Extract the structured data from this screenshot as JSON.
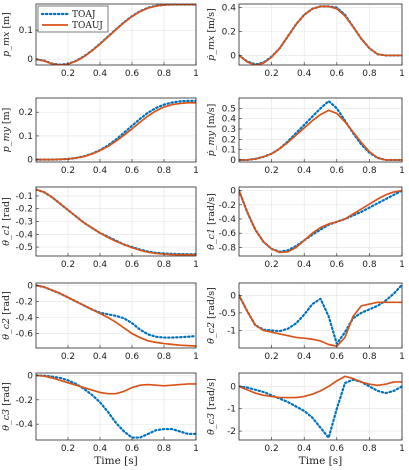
{
  "legend": {
    "entries": [
      {
        "label": "TOAJ",
        "color": "#0072BD",
        "dash": "dotted"
      },
      {
        "label": "TOAUJ",
        "color": "#D95319",
        "dash": "solid"
      }
    ]
  },
  "x_axis_label": "Time [s]",
  "chart_data": [
    {
      "type": "line",
      "ylabel": "p_mx [m]",
      "xlim": [
        0,
        1
      ],
      "ylim": [
        -0.02,
        0.19
      ],
      "yticks": [
        0,
        0.1
      ],
      "xticks": [
        0.2,
        0.4,
        0.6,
        0.8,
        1
      ],
      "grid": true,
      "x": [
        0,
        0.05,
        0.1,
        0.15,
        0.2,
        0.25,
        0.3,
        0.35,
        0.4,
        0.45,
        0.5,
        0.55,
        0.6,
        0.65,
        0.7,
        0.75,
        0.8,
        0.85,
        0.9,
        0.95,
        1
      ],
      "series": [
        {
          "name": "TOAJ",
          "values": [
            0,
            -0.005,
            -0.015,
            -0.019,
            -0.016,
            -0.006,
            0.01,
            0.03,
            0.053,
            0.078,
            0.103,
            0.127,
            0.148,
            0.165,
            0.177,
            0.184,
            0.187,
            0.188,
            0.188,
            0.188,
            0.188
          ]
        },
        {
          "name": "TOAUJ",
          "values": [
            0,
            -0.006,
            -0.016,
            -0.02,
            -0.017,
            -0.007,
            0.009,
            0.029,
            0.052,
            0.077,
            0.102,
            0.126,
            0.147,
            0.164,
            0.176,
            0.183,
            0.187,
            0.188,
            0.188,
            0.188,
            0.188
          ]
        }
      ]
    },
    {
      "type": "line",
      "ylabel": "ṗ_mx [m/s]",
      "xlim": [
        0,
        1
      ],
      "ylim": [
        -0.08,
        0.43
      ],
      "yticks": [
        0,
        0.2,
        0.4
      ],
      "xticks": [
        0.2,
        0.4,
        0.6,
        0.8,
        1
      ],
      "grid": true,
      "x": [
        0,
        0.05,
        0.1,
        0.15,
        0.2,
        0.25,
        0.3,
        0.35,
        0.4,
        0.45,
        0.5,
        0.55,
        0.6,
        0.65,
        0.7,
        0.75,
        0.8,
        0.85,
        0.9,
        0.95,
        1
      ],
      "series": [
        {
          "name": "TOAJ",
          "values": [
            0,
            -0.05,
            -0.075,
            -0.06,
            -0.01,
            0.06,
            0.16,
            0.26,
            0.34,
            0.39,
            0.41,
            0.41,
            0.4,
            0.34,
            0.24,
            0.14,
            0.06,
            0.01,
            0,
            0,
            0
          ]
        },
        {
          "name": "TOAUJ",
          "values": [
            0,
            -0.055,
            -0.08,
            -0.065,
            -0.015,
            0.06,
            0.16,
            0.26,
            0.34,
            0.39,
            0.41,
            0.41,
            0.39,
            0.33,
            0.24,
            0.14,
            0.06,
            0.01,
            0,
            0,
            0
          ]
        }
      ]
    },
    {
      "type": "line",
      "ylabel": "p_my [m]",
      "xlim": [
        0,
        1
      ],
      "ylim": [
        -0.01,
        0.26
      ],
      "yticks": [
        0,
        0.1,
        0.2
      ],
      "xticks": [
        0.2,
        0.4,
        0.6,
        0.8,
        1
      ],
      "grid": true,
      "x": [
        0,
        0.05,
        0.1,
        0.15,
        0.2,
        0.25,
        0.3,
        0.35,
        0.4,
        0.45,
        0.5,
        0.55,
        0.6,
        0.65,
        0.7,
        0.75,
        0.8,
        0.85,
        0.9,
        0.95,
        1
      ],
      "series": [
        {
          "name": "TOAJ",
          "values": [
            0,
            0,
            0,
            0.001,
            0.003,
            0.007,
            0.014,
            0.025,
            0.04,
            0.06,
            0.085,
            0.113,
            0.143,
            0.172,
            0.198,
            0.218,
            0.232,
            0.241,
            0.246,
            0.248,
            0.248
          ]
        },
        {
          "name": "TOAUJ",
          "values": [
            0,
            0,
            0,
            0.001,
            0.003,
            0.007,
            0.013,
            0.024,
            0.038,
            0.056,
            0.078,
            0.103,
            0.13,
            0.158,
            0.184,
            0.206,
            0.222,
            0.232,
            0.237,
            0.24,
            0.24
          ]
        }
      ]
    },
    {
      "type": "line",
      "ylabel": "ṗ_my [m/s]",
      "xlim": [
        0,
        1
      ],
      "ylim": [
        -0.02,
        0.6
      ],
      "yticks": [
        0,
        0.1,
        0.2,
        0.3,
        0.4,
        0.5
      ],
      "xticks": [
        0.2,
        0.4,
        0.6,
        0.8,
        1
      ],
      "grid": true,
      "x": [
        0,
        0.05,
        0.1,
        0.15,
        0.2,
        0.25,
        0.3,
        0.35,
        0.4,
        0.45,
        0.5,
        0.55,
        0.6,
        0.65,
        0.7,
        0.75,
        0.8,
        0.85,
        0.9,
        0.95,
        1
      ],
      "series": [
        {
          "name": "TOAJ",
          "values": [
            0,
            0,
            0.01,
            0.03,
            0.06,
            0.11,
            0.18,
            0.26,
            0.34,
            0.42,
            0.5,
            0.57,
            0.5,
            0.38,
            0.26,
            0.15,
            0.07,
            0.02,
            0,
            0,
            0
          ]
        },
        {
          "name": "TOAUJ",
          "values": [
            0,
            0,
            0.01,
            0.03,
            0.06,
            0.11,
            0.17,
            0.24,
            0.31,
            0.38,
            0.44,
            0.48,
            0.45,
            0.37,
            0.27,
            0.17,
            0.08,
            0.02,
            0,
            0,
            0
          ]
        }
      ]
    },
    {
      "type": "line",
      "ylabel": "θ_c1 [rad]",
      "xlim": [
        0,
        1
      ],
      "ylim": [
        -0.57,
        -0.03
      ],
      "yticks": [
        -0.5,
        -0.4,
        -0.3,
        -0.2,
        -0.1
      ],
      "xticks": [
        0.2,
        0.4,
        0.6,
        0.8,
        1
      ],
      "grid": true,
      "x": [
        0,
        0.05,
        0.1,
        0.15,
        0.2,
        0.25,
        0.3,
        0.35,
        0.4,
        0.45,
        0.5,
        0.55,
        0.6,
        0.65,
        0.7,
        0.75,
        0.8,
        0.85,
        0.9,
        0.95,
        1
      ],
      "series": [
        {
          "name": "TOAJ",
          "values": [
            -0.05,
            -0.07,
            -0.11,
            -0.16,
            -0.21,
            -0.26,
            -0.31,
            -0.35,
            -0.39,
            -0.42,
            -0.45,
            -0.48,
            -0.5,
            -0.52,
            -0.535,
            -0.545,
            -0.55,
            -0.553,
            -0.555,
            -0.556,
            -0.556
          ]
        },
        {
          "name": "TOAUJ",
          "values": [
            -0.05,
            -0.07,
            -0.11,
            -0.16,
            -0.21,
            -0.26,
            -0.31,
            -0.35,
            -0.39,
            -0.425,
            -0.455,
            -0.48,
            -0.505,
            -0.525,
            -0.54,
            -0.55,
            -0.555,
            -0.558,
            -0.56,
            -0.56,
            -0.56
          ]
        }
      ]
    },
    {
      "type": "line",
      "ylabel": "θ̇_c1 [rad/s]",
      "xlim": [
        0,
        1
      ],
      "ylim": [
        -0.92,
        0.05
      ],
      "yticks": [
        -0.8,
        -0.6,
        -0.4,
        -0.2,
        0
      ],
      "xticks": [
        0.2,
        0.4,
        0.6,
        0.8,
        1
      ],
      "grid": true,
      "x": [
        0,
        0.05,
        0.1,
        0.15,
        0.2,
        0.25,
        0.3,
        0.35,
        0.4,
        0.45,
        0.5,
        0.55,
        0.6,
        0.65,
        0.7,
        0.75,
        0.8,
        0.85,
        0.9,
        0.95,
        1
      ],
      "series": [
        {
          "name": "TOAJ",
          "values": [
            0,
            -0.3,
            -0.55,
            -0.72,
            -0.82,
            -0.86,
            -0.84,
            -0.78,
            -0.7,
            -0.62,
            -0.55,
            -0.48,
            -0.44,
            -0.4,
            -0.35,
            -0.3,
            -0.24,
            -0.18,
            -0.12,
            -0.06,
            0
          ]
        },
        {
          "name": "TOAUJ",
          "values": [
            0,
            -0.3,
            -0.55,
            -0.72,
            -0.82,
            -0.87,
            -0.86,
            -0.8,
            -0.7,
            -0.6,
            -0.52,
            -0.47,
            -0.44,
            -0.4,
            -0.33,
            -0.26,
            -0.19,
            -0.12,
            -0.06,
            -0.02,
            0
          ]
        }
      ]
    },
    {
      "type": "line",
      "ylabel": "θ_c2 [rad]",
      "xlim": [
        0,
        1
      ],
      "ylim": [
        -0.78,
        0.03
      ],
      "yticks": [
        -0.6,
        -0.4,
        -0.2,
        0
      ],
      "xticks": [
        0.2,
        0.4,
        0.6,
        0.8,
        1
      ],
      "grid": true,
      "x": [
        0,
        0.05,
        0.1,
        0.15,
        0.2,
        0.25,
        0.3,
        0.35,
        0.4,
        0.45,
        0.5,
        0.55,
        0.6,
        0.65,
        0.7,
        0.75,
        0.8,
        0.85,
        0.9,
        0.95,
        1
      ],
      "series": [
        {
          "name": "TOAJ",
          "values": [
            0,
            -0.02,
            -0.06,
            -0.1,
            -0.15,
            -0.2,
            -0.25,
            -0.3,
            -0.34,
            -0.36,
            -0.38,
            -0.41,
            -0.47,
            -0.55,
            -0.61,
            -0.64,
            -0.65,
            -0.65,
            -0.645,
            -0.64,
            -0.63
          ]
        },
        {
          "name": "TOAUJ",
          "values": [
            0,
            -0.02,
            -0.06,
            -0.1,
            -0.15,
            -0.2,
            -0.25,
            -0.3,
            -0.35,
            -0.4,
            -0.46,
            -0.53,
            -0.6,
            -0.65,
            -0.69,
            -0.71,
            -0.725,
            -0.735,
            -0.745,
            -0.75,
            -0.755
          ]
        }
      ]
    },
    {
      "type": "line",
      "ylabel": "θ̇_c2 [rad/s]",
      "xlim": [
        0,
        1
      ],
      "ylim": [
        -1.5,
        0.35
      ],
      "yticks": [
        -1,
        -0.5,
        0
      ],
      "xticks": [
        0.2,
        0.4,
        0.6,
        0.8,
        1
      ],
      "grid": true,
      "x": [
        0,
        0.05,
        0.1,
        0.15,
        0.2,
        0.25,
        0.3,
        0.35,
        0.4,
        0.45,
        0.5,
        0.55,
        0.6,
        0.65,
        0.7,
        0.75,
        0.8,
        0.85,
        0.9,
        0.95,
        1
      ],
      "series": [
        {
          "name": "TOAJ",
          "values": [
            0,
            -0.45,
            -0.85,
            -0.98,
            -1.0,
            -1.02,
            -0.95,
            -0.8,
            -0.55,
            -0.25,
            -0.1,
            -0.6,
            -1.38,
            -1.05,
            -0.65,
            -0.5,
            -0.4,
            -0.3,
            -0.15,
            0.05,
            0.3
          ]
        },
        {
          "name": "TOAUJ",
          "values": [
            0,
            -0.45,
            -0.85,
            -1.0,
            -1.05,
            -1.1,
            -1.15,
            -1.2,
            -1.22,
            -1.25,
            -1.3,
            -1.4,
            -1.45,
            -1.2,
            -0.6,
            -0.3,
            -0.25,
            -0.2,
            -0.2,
            -0.2,
            -0.2
          ]
        }
      ]
    },
    {
      "type": "line",
      "ylabel": "θ_c3 [rad]",
      "xlim": [
        0,
        1
      ],
      "ylim": [
        -0.53,
        0.02
      ],
      "yticks": [
        -0.4,
        -0.2,
        0
      ],
      "xticks": [
        0.2,
        0.4,
        0.6,
        0.8,
        1
      ],
      "grid": true,
      "x": [
        0,
        0.05,
        0.1,
        0.15,
        0.2,
        0.25,
        0.3,
        0.35,
        0.4,
        0.45,
        0.5,
        0.55,
        0.6,
        0.65,
        0.7,
        0.75,
        0.8,
        0.85,
        0.9,
        0.95,
        1
      ],
      "series": [
        {
          "name": "TOAJ",
          "values": [
            0,
            -0.002,
            -0.01,
            -0.02,
            -0.04,
            -0.07,
            -0.11,
            -0.16,
            -0.22,
            -0.3,
            -0.39,
            -0.46,
            -0.51,
            -0.51,
            -0.48,
            -0.45,
            -0.44,
            -0.44,
            -0.46,
            -0.48,
            -0.48
          ]
        },
        {
          "name": "TOAUJ",
          "values": [
            0,
            -0.005,
            -0.02,
            -0.04,
            -0.06,
            -0.08,
            -0.1,
            -0.12,
            -0.14,
            -0.15,
            -0.15,
            -0.13,
            -0.1,
            -0.08,
            -0.075,
            -0.08,
            -0.085,
            -0.08,
            -0.075,
            -0.07,
            -0.07
          ]
        }
      ]
    },
    {
      "type": "line",
      "ylabel": "θ̇_c3 [rad/s]",
      "xlim": [
        0,
        1
      ],
      "ylim": [
        -2.4,
        0.6
      ],
      "yticks": [
        -2,
        -1,
        0
      ],
      "xticks": [
        0.2,
        0.4,
        0.6,
        0.8,
        1
      ],
      "grid": true,
      "x": [
        0,
        0.05,
        0.1,
        0.15,
        0.2,
        0.25,
        0.3,
        0.35,
        0.4,
        0.45,
        0.5,
        0.55,
        0.6,
        0.65,
        0.7,
        0.75,
        0.8,
        0.85,
        0.9,
        0.95,
        1
      ],
      "series": [
        {
          "name": "TOAJ",
          "values": [
            0,
            -0.05,
            -0.15,
            -0.25,
            -0.4,
            -0.55,
            -0.7,
            -0.9,
            -1.1,
            -1.4,
            -1.85,
            -2.3,
            -1.0,
            0.15,
            0.3,
            0.2,
            0.0,
            -0.2,
            -0.3,
            -0.2,
            0.0
          ]
        },
        {
          "name": "TOAUJ",
          "values": [
            0,
            -0.15,
            -0.3,
            -0.4,
            -0.45,
            -0.5,
            -0.5,
            -0.5,
            -0.45,
            -0.35,
            -0.2,
            0.0,
            0.25,
            0.45,
            0.35,
            0.2,
            0.1,
            0.05,
            0.1,
            0.2,
            0.2
          ]
        }
      ]
    }
  ]
}
